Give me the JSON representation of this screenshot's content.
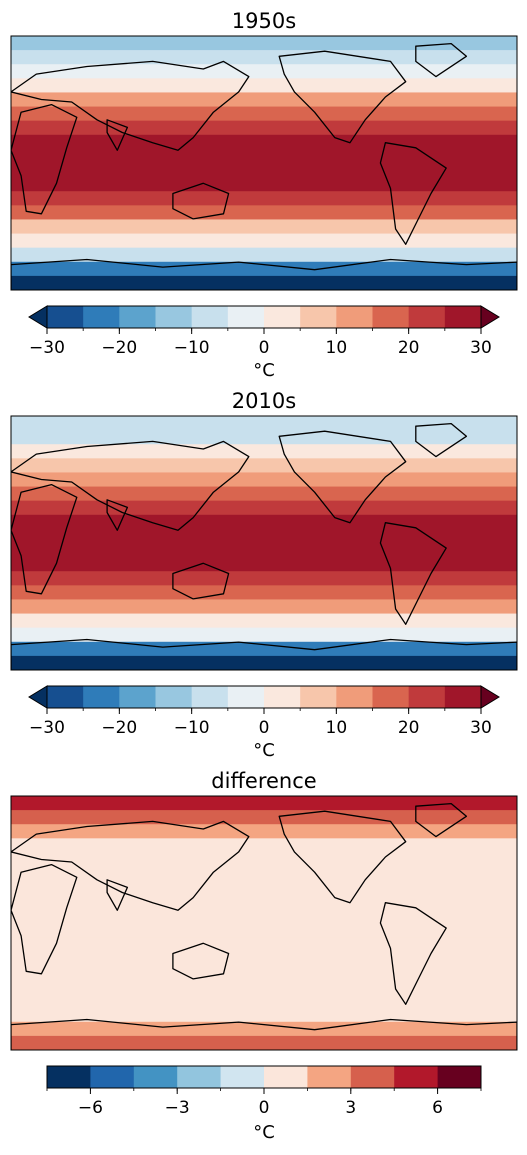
{
  "chart_data": [
    {
      "type": "heatmap",
      "title": "1950s",
      "description_colorbar_label": "°C",
      "colorbar": {
        "label": "°C",
        "levels": [
          -30,
          -25,
          -20,
          -15,
          -10,
          -5,
          0,
          5,
          10,
          15,
          20,
          25,
          30
        ],
        "tick_labels": [
          "−30",
          "−20",
          "−10",
          "0",
          "10",
          "20",
          "30"
        ],
        "tick_values": [
          -30,
          -20,
          -10,
          0,
          10,
          20,
          30
        ],
        "extend": "both",
        "colors": [
          "#164f90",
          "#2f7cb9",
          "#5ca3cd",
          "#98c7e0",
          "#c8e0ed",
          "#e9f0f4",
          "#fae8de",
          "#f7c6ab",
          "#f09c7a",
          "#d9654f",
          "#c03a3c",
          "#a0162a"
        ],
        "under_color": "#053061",
        "over_color": "#67001f"
      },
      "zonal_profile": [
        {
          "lat": 85,
          "value": -14
        },
        {
          "lat": 75,
          "value": -9
        },
        {
          "lat": 65,
          "value": -2
        },
        {
          "lat": 55,
          "value": 4
        },
        {
          "lat": 45,
          "value": 10
        },
        {
          "lat": 35,
          "value": 17
        },
        {
          "lat": 25,
          "value": 22
        },
        {
          "lat": 15,
          "value": 26
        },
        {
          "lat": 5,
          "value": 27
        },
        {
          "lat": -5,
          "value": 27
        },
        {
          "lat": -15,
          "value": 25
        },
        {
          "lat": -25,
          "value": 21
        },
        {
          "lat": -35,
          "value": 16
        },
        {
          "lat": -45,
          "value": 9
        },
        {
          "lat": -55,
          "value": 3
        },
        {
          "lat": -65,
          "value": -6
        },
        {
          "lat": -75,
          "value": -25
        },
        {
          "lat": -85,
          "value": -33
        }
      ]
    },
    {
      "type": "heatmap",
      "title": "2010s",
      "colorbar": {
        "label": "°C",
        "levels": [
          -30,
          -25,
          -20,
          -15,
          -10,
          -5,
          0,
          5,
          10,
          15,
          20,
          25,
          30
        ],
        "tick_labels": [
          "−30",
          "−20",
          "−10",
          "0",
          "10",
          "20",
          "30"
        ],
        "tick_values": [
          -30,
          -20,
          -10,
          0,
          10,
          20,
          30
        ],
        "extend": "both",
        "colors": [
          "#164f90",
          "#2f7cb9",
          "#5ca3cd",
          "#98c7e0",
          "#c8e0ed",
          "#e9f0f4",
          "#fae8de",
          "#f7c6ab",
          "#f09c7a",
          "#d9654f",
          "#c03a3c",
          "#a0162a"
        ],
        "under_color": "#053061",
        "over_color": "#67001f"
      },
      "zonal_profile": [
        {
          "lat": 85,
          "value": -10
        },
        {
          "lat": 75,
          "value": -6
        },
        {
          "lat": 65,
          "value": 0
        },
        {
          "lat": 55,
          "value": 5
        },
        {
          "lat": 45,
          "value": 11
        },
        {
          "lat": 35,
          "value": 18
        },
        {
          "lat": 25,
          "value": 23
        },
        {
          "lat": 15,
          "value": 27
        },
        {
          "lat": 5,
          "value": 28
        },
        {
          "lat": -5,
          "value": 28
        },
        {
          "lat": -15,
          "value": 26
        },
        {
          "lat": -25,
          "value": 22
        },
        {
          "lat": -35,
          "value": 16
        },
        {
          "lat": -45,
          "value": 10
        },
        {
          "lat": -55,
          "value": 3
        },
        {
          "lat": -65,
          "value": -5
        },
        {
          "lat": -75,
          "value": -24
        },
        {
          "lat": -85,
          "value": -32
        }
      ]
    },
    {
      "type": "heatmap",
      "title": "difference",
      "colorbar": {
        "label": "°C",
        "levels": [
          -7.5,
          -6,
          -4.5,
          -3,
          -1.5,
          0,
          1.5,
          3,
          4.5,
          6,
          7.5
        ],
        "tick_labels": [
          "−6",
          "−3",
          "0",
          "3",
          "6"
        ],
        "tick_values": [
          -6,
          -3,
          0,
          3,
          6
        ],
        "extend": "neither",
        "colors": [
          "#053061",
          "#2166ac",
          "#4393c3",
          "#92c5de",
          "#d1e5f0",
          "#fbe6db",
          "#f4a582",
          "#d6604d",
          "#b2182b",
          "#67001f"
        ]
      },
      "zonal_profile": [
        {
          "lat": 85,
          "value": 4.5
        },
        {
          "lat": 75,
          "value": 3
        },
        {
          "lat": 65,
          "value": 1.6
        },
        {
          "lat": 55,
          "value": 0.5
        },
        {
          "lat": 45,
          "value": 0.5
        },
        {
          "lat": 35,
          "value": 0.5
        },
        {
          "lat": 25,
          "value": 0.5
        },
        {
          "lat": 15,
          "value": 0.5
        },
        {
          "lat": 5,
          "value": 0.5
        },
        {
          "lat": -5,
          "value": 0.5
        },
        {
          "lat": -15,
          "value": 0.5
        },
        {
          "lat": -25,
          "value": 0.5
        },
        {
          "lat": -35,
          "value": 0.5
        },
        {
          "lat": -45,
          "value": 0.5
        },
        {
          "lat": -55,
          "value": 0.5
        },
        {
          "lat": -65,
          "value": 0.5
        },
        {
          "lat": -75,
          "value": 1.6
        },
        {
          "lat": -85,
          "value": 3
        }
      ]
    }
  ]
}
